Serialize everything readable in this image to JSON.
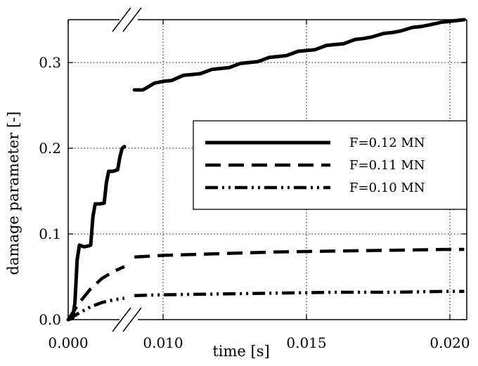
{
  "chart_data": {
    "type": "line",
    "xlabel": "time [s]",
    "ylabel": "damage parameter [-]",
    "grid": true,
    "legend_position": "center-right",
    "axis_break": "x-axis broken between 0.004 and 0.009",
    "xticks": [
      "0.000",
      "0.010",
      "0.015",
      "0.020"
    ],
    "yticks": [
      "0.0",
      "0.1",
      "0.2",
      "0.3"
    ],
    "ylim": [
      0,
      0.35
    ],
    "series": [
      {
        "name": "F=0.12 MN",
        "style": "solid",
        "segments": [
          [
            [
              0.0,
              0.0
            ],
            [
              0.0002,
              0.002
            ],
            [
              0.0003,
              0.02
            ],
            [
              0.0004,
              0.07
            ],
            [
              0.0005,
              0.087
            ],
            [
              0.0007,
              0.085
            ],
            [
              0.0009,
              0.086
            ],
            [
              0.001,
              0.087
            ],
            [
              0.0011,
              0.12
            ],
            [
              0.0012,
              0.135
            ],
            [
              0.0014,
              0.135
            ],
            [
              0.0016,
              0.136
            ],
            [
              0.0017,
              0.16
            ],
            [
              0.0018,
              0.173
            ],
            [
              0.002,
              0.173
            ],
            [
              0.0022,
              0.175
            ],
            [
              0.0023,
              0.19
            ],
            [
              0.0024,
              0.2
            ],
            [
              0.0025,
              0.202
            ]
          ],
          [
            [
              0.009,
              0.268
            ],
            [
              0.0093,
              0.268
            ],
            [
              0.0097,
              0.276
            ],
            [
              0.01,
              0.278
            ],
            [
              0.0103,
              0.279
            ],
            [
              0.0107,
              0.285
            ],
            [
              0.011,
              0.286
            ],
            [
              0.0113,
              0.287
            ],
            [
              0.0117,
              0.292
            ],
            [
              0.012,
              0.293
            ],
            [
              0.0123,
              0.294
            ],
            [
              0.0127,
              0.299
            ],
            [
              0.013,
              0.3
            ],
            [
              0.0133,
              0.301
            ],
            [
              0.0137,
              0.306
            ],
            [
              0.014,
              0.307
            ],
            [
              0.0143,
              0.308
            ],
            [
              0.0147,
              0.313
            ],
            [
              0.015,
              0.314
            ],
            [
              0.0153,
              0.315
            ],
            [
              0.0157,
              0.32
            ],
            [
              0.016,
              0.321
            ],
            [
              0.0163,
              0.322
            ],
            [
              0.0167,
              0.327
            ],
            [
              0.017,
              0.328
            ],
            [
              0.0173,
              0.33
            ],
            [
              0.0177,
              0.334
            ],
            [
              0.018,
              0.335
            ],
            [
              0.0183,
              0.337
            ],
            [
              0.0187,
              0.341
            ],
            [
              0.019,
              0.342
            ],
            [
              0.0193,
              0.344
            ],
            [
              0.0197,
              0.347
            ],
            [
              0.02,
              0.348
            ],
            [
              0.0205,
              0.35
            ]
          ]
        ]
      },
      {
        "name": "F=0.11 MN",
        "style": "dashed",
        "segments": [
          [
            [
              0.0,
              0.0
            ],
            [
              0.0005,
              0.02
            ],
            [
              0.001,
              0.036
            ],
            [
              0.0015,
              0.048
            ],
            [
              0.002,
              0.056
            ],
            [
              0.0025,
              0.062
            ]
          ],
          [
            [
              0.009,
              0.073
            ],
            [
              0.01,
              0.075
            ],
            [
              0.012,
              0.077
            ],
            [
              0.014,
              0.079
            ],
            [
              0.016,
              0.08
            ],
            [
              0.018,
              0.081
            ],
            [
              0.02,
              0.082
            ],
            [
              0.0205,
              0.082
            ]
          ]
        ]
      },
      {
        "name": "F=0.10 MN",
        "style": "dashdotdot",
        "segments": [
          [
            [
              0.0,
              0.0
            ],
            [
              0.0005,
              0.008
            ],
            [
              0.001,
              0.015
            ],
            [
              0.0015,
              0.02
            ],
            [
              0.002,
              0.023
            ],
            [
              0.0025,
              0.025
            ]
          ],
          [
            [
              0.009,
              0.028
            ],
            [
              0.01,
              0.029
            ],
            [
              0.012,
              0.03
            ],
            [
              0.014,
              0.031
            ],
            [
              0.016,
              0.032
            ],
            [
              0.018,
              0.032
            ],
            [
              0.02,
              0.033
            ],
            [
              0.0205,
              0.033
            ]
          ]
        ]
      }
    ]
  }
}
